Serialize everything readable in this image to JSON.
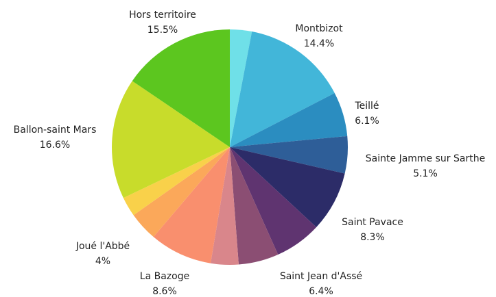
{
  "chart_data": {
    "type": "pie",
    "categories": [
      null,
      "Montbizot",
      "Teillé",
      "Sainte Jamme sur Sarthe",
      "Saint Pavace",
      "Saint Jean d'Assé",
      null,
      null,
      "La Bazoge",
      "Joué l'Abbé",
      null,
      "Ballon-saint Mars",
      "Hors territoire"
    ],
    "values": [
      3,
      14.4,
      6.1,
      5.1,
      8.3,
      6.4,
      5.5,
      3.8,
      8.6,
      4,
      2.7,
      16.6,
      15.5
    ],
    "value_labels": [
      null,
      "14.4%",
      "6.1%",
      "5.1%",
      "8.3%",
      "6.4%",
      null,
      null,
      "8.6%",
      "4%",
      null,
      "16.6%",
      "15.5%"
    ],
    "colors": [
      "#6fe0e8",
      "#42b6d9",
      "#2b8dc0",
      "#2e5e98",
      "#2c2c68",
      "#5f3470",
      "#8b4e73",
      "#d9868b",
      "#f98f6e",
      "#fba85a",
      "#f9d14a",
      "#c8dc2b",
      "#5cc61f"
    ]
  }
}
